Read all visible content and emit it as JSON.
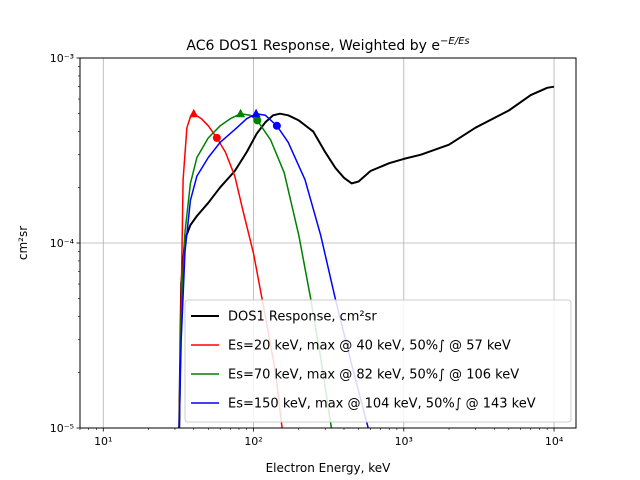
{
  "chart_data": {
    "type": "line",
    "title": "AC6 DOS1 Response, Weighted by e",
    "title_superscript": "−E/Es",
    "xlabel": "Electron Energy, keV",
    "ylabel": "cm²sr",
    "x_scale": "log",
    "y_scale": "log",
    "xlim": [
      7,
      14000
    ],
    "ylim": [
      1e-05,
      0.001
    ],
    "x_ticks": [
      {
        "value": 10,
        "label": "10¹"
      },
      {
        "value": 100,
        "label": "10²"
      },
      {
        "value": 1000,
        "label": "10³"
      },
      {
        "value": 10000,
        "label": "10⁴"
      }
    ],
    "y_ticks": [
      {
        "value": 1e-05,
        "label": "10⁻⁵"
      },
      {
        "value": 0.0001,
        "label": "10⁻⁴"
      },
      {
        "value": 0.001,
        "label": "10⁻³"
      }
    ],
    "grid": true,
    "legend_position": "bottom-right",
    "series": [
      {
        "name": "DOS1 Response, cm²sr",
        "color": "#000000",
        "points": [
          [
            32,
            1e-05
          ],
          [
            33,
            6e-05
          ],
          [
            35,
            0.000105
          ],
          [
            38,
            0.000125
          ],
          [
            42,
            0.00014
          ],
          [
            50,
            0.000165
          ],
          [
            60,
            0.0002
          ],
          [
            75,
            0.000245
          ],
          [
            90,
            0.00031
          ],
          [
            105,
            0.00039
          ],
          [
            120,
            0.00045
          ],
          [
            135,
            0.00049
          ],
          [
            150,
            0.0005
          ],
          [
            170,
            0.00049
          ],
          [
            200,
            0.00046
          ],
          [
            250,
            0.0004
          ],
          [
            300,
            0.00031
          ],
          [
            350,
            0.000255
          ],
          [
            400,
            0.000225
          ],
          [
            450,
            0.00021
          ],
          [
            500,
            0.000215
          ],
          [
            600,
            0.000245
          ],
          [
            800,
            0.00027
          ],
          [
            1000,
            0.000285
          ],
          [
            1300,
            0.0003
          ],
          [
            2000,
            0.00034
          ],
          [
            3000,
            0.00042
          ],
          [
            5000,
            0.00052
          ],
          [
            7000,
            0.00063
          ],
          [
            9000,
            0.00069
          ],
          [
            10000,
            0.0007
          ]
        ]
      },
      {
        "name": "Es=20 keV, max @ 40 keV, 50%∫ @ 57 keV",
        "color": "#ff0000",
        "points": [
          [
            32,
            1e-05
          ],
          [
            33,
            5e-05
          ],
          [
            34,
            0.00022
          ],
          [
            36,
            0.00042
          ],
          [
            38,
            0.00048
          ],
          [
            40,
            0.0005
          ],
          [
            45,
            0.00047
          ],
          [
            50,
            0.00043
          ],
          [
            57,
            0.00037
          ],
          [
            65,
            0.00031
          ],
          [
            75,
            0.00023
          ],
          [
            85,
            0.00015
          ],
          [
            100,
            8.8e-05
          ],
          [
            120,
            4e-05
          ],
          [
            140,
            2e-05
          ],
          [
            155,
            1e-05
          ]
        ],
        "max_marker": [
          40,
          0.0005
        ],
        "half_integral_marker": [
          57,
          0.00037
        ]
      },
      {
        "name": "Es=70 keV, max @ 82 keV, 50%∫ @ 106 keV",
        "color": "#008000",
        "points": [
          [
            32,
            1e-05
          ],
          [
            33,
            4e-05
          ],
          [
            35,
            0.000115
          ],
          [
            38,
            0.00021
          ],
          [
            42,
            0.00029
          ],
          [
            50,
            0.00037
          ],
          [
            60,
            0.00043
          ],
          [
            70,
            0.00047
          ],
          [
            82,
            0.0005
          ],
          [
            95,
            0.00049
          ],
          [
            106,
            0.00046
          ],
          [
            130,
            0.00036
          ],
          [
            160,
            0.00024
          ],
          [
            200,
            0.00011
          ],
          [
            240,
            5e-05
          ],
          [
            280,
            2.4e-05
          ],
          [
            330,
            1e-05
          ]
        ],
        "max_marker": [
          82,
          0.0005
        ],
        "half_integral_marker": [
          106,
          0.00046
        ]
      },
      {
        "name": "Es=150 keV, max @ 104 keV, 50%∫ @ 143 keV",
        "color": "#0000ff",
        "points": [
          [
            32,
            1e-05
          ],
          [
            33,
            3e-05
          ],
          [
            35,
            9e-05
          ],
          [
            38,
            0.00017
          ],
          [
            42,
            0.00023
          ],
          [
            50,
            0.00029
          ],
          [
            60,
            0.00035
          ],
          [
            75,
            0.00041
          ],
          [
            90,
            0.00047
          ],
          [
            104,
            0.0005
          ],
          [
            120,
            0.00049
          ],
          [
            143,
            0.00043
          ],
          [
            170,
            0.00035
          ],
          [
            220,
            0.00022
          ],
          [
            280,
            0.00011
          ],
          [
            350,
            5e-05
          ],
          [
            450,
            2.2e-05
          ],
          [
            580,
            1e-05
          ]
        ],
        "max_marker": [
          104,
          0.0005
        ],
        "half_integral_marker": [
          143,
          0.00043
        ]
      }
    ]
  }
}
